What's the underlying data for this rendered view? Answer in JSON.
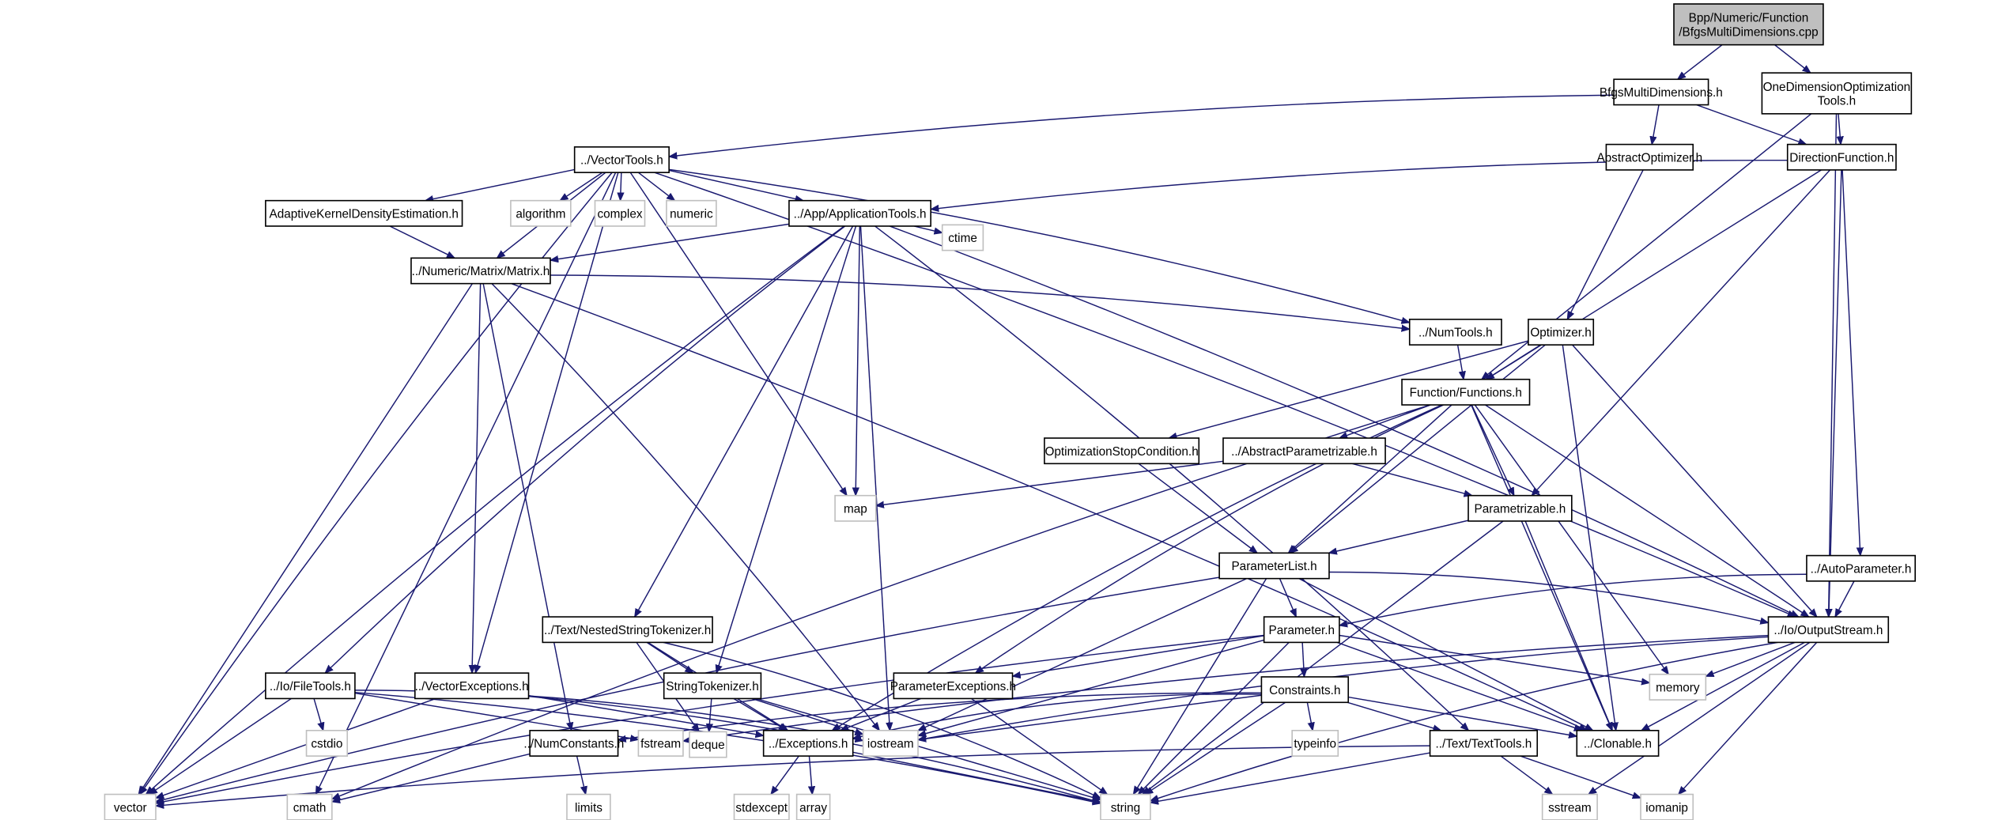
{
  "diagram": {
    "type": "include-dependency-graph",
    "colors": {
      "edge": "#191970",
      "root_fill": "#bfbfbf",
      "system_border": "#bfbfbf",
      "documented_border": "#000000"
    },
    "nodes": [
      {
        "id": "root",
        "lines": [
          "Bpp/Numeric/Function",
          "/BfgsMultiDimensions.cpp"
        ],
        "kind": "root"
      },
      {
        "id": "bfgs",
        "lines": [
          "BfgsMultiDimensions.h"
        ],
        "kind": "documented"
      },
      {
        "id": "onedim",
        "lines": [
          "OneDimensionOptimization",
          "Tools.h"
        ],
        "kind": "documented"
      },
      {
        "id": "vectortools",
        "lines": [
          "../VectorTools.h"
        ],
        "kind": "documented"
      },
      {
        "id": "absopt",
        "lines": [
          "AbstractOptimizer.h"
        ],
        "kind": "documented"
      },
      {
        "id": "dirfun",
        "lines": [
          "DirectionFunction.h"
        ],
        "kind": "documented"
      },
      {
        "id": "akde",
        "lines": [
          "AdaptiveKernelDensityEstimation.h"
        ],
        "kind": "documented"
      },
      {
        "id": "algorithm",
        "lines": [
          "algorithm"
        ],
        "kind": "system"
      },
      {
        "id": "complex",
        "lines": [
          "complex"
        ],
        "kind": "system"
      },
      {
        "id": "numeric",
        "lines": [
          "numeric"
        ],
        "kind": "system"
      },
      {
        "id": "apptools",
        "lines": [
          "../App/ApplicationTools.h"
        ],
        "kind": "documented"
      },
      {
        "id": "ctime",
        "lines": [
          "ctime"
        ],
        "kind": "system"
      },
      {
        "id": "matrix",
        "lines": [
          "../Numeric/Matrix/Matrix.h"
        ],
        "kind": "documented"
      },
      {
        "id": "numtools",
        "lines": [
          "../NumTools.h"
        ],
        "kind": "documented"
      },
      {
        "id": "optimizer",
        "lines": [
          "Optimizer.h"
        ],
        "kind": "documented"
      },
      {
        "id": "functions",
        "lines": [
          "Function/Functions.h"
        ],
        "kind": "documented"
      },
      {
        "id": "optstop",
        "lines": [
          "OptimizationStopCondition.h"
        ],
        "kind": "documented"
      },
      {
        "id": "absparam",
        "lines": [
          "../AbstractParametrizable.h"
        ],
        "kind": "documented"
      },
      {
        "id": "map",
        "lines": [
          "map"
        ],
        "kind": "system"
      },
      {
        "id": "parametrizable",
        "lines": [
          "Parametrizable.h"
        ],
        "kind": "documented"
      },
      {
        "id": "autoparam",
        "lines": [
          "../AutoParameter.h"
        ],
        "kind": "documented"
      },
      {
        "id": "paramlist",
        "lines": [
          "ParameterList.h"
        ],
        "kind": "documented"
      },
      {
        "id": "nested",
        "lines": [
          "../Text/NestedStringTokenizer.h"
        ],
        "kind": "documented"
      },
      {
        "id": "parameter",
        "lines": [
          "Parameter.h"
        ],
        "kind": "documented"
      },
      {
        "id": "outstream",
        "lines": [
          "../Io/OutputStream.h"
        ],
        "kind": "documented"
      },
      {
        "id": "filetools",
        "lines": [
          "../Io/FileTools.h"
        ],
        "kind": "documented"
      },
      {
        "id": "vecexc",
        "lines": [
          "../VectorExceptions.h"
        ],
        "kind": "documented"
      },
      {
        "id": "strtok",
        "lines": [
          "StringTokenizer.h"
        ],
        "kind": "documented"
      },
      {
        "id": "paramexc",
        "lines": [
          "ParameterExceptions.h"
        ],
        "kind": "documented"
      },
      {
        "id": "constraints",
        "lines": [
          "Constraints.h"
        ],
        "kind": "documented"
      },
      {
        "id": "memory",
        "lines": [
          "memory"
        ],
        "kind": "system"
      },
      {
        "id": "cstdio",
        "lines": [
          "cstdio"
        ],
        "kind": "system"
      },
      {
        "id": "fstream",
        "lines": [
          "fstream"
        ],
        "kind": "system"
      },
      {
        "id": "numconst",
        "lines": [
          "../NumConstants.h"
        ],
        "kind": "documented"
      },
      {
        "id": "deque",
        "lines": [
          "deque"
        ],
        "kind": "system"
      },
      {
        "id": "exceptions",
        "lines": [
          "../Exceptions.h"
        ],
        "kind": "documented"
      },
      {
        "id": "iostream",
        "lines": [
          "iostream"
        ],
        "kind": "system"
      },
      {
        "id": "typeinfo",
        "lines": [
          "typeinfo"
        ],
        "kind": "system"
      },
      {
        "id": "texttools",
        "lines": [
          "../Text/TextTools.h"
        ],
        "kind": "documented"
      },
      {
        "id": "clonable",
        "lines": [
          "../Clonable.h"
        ],
        "kind": "documented"
      },
      {
        "id": "vector",
        "lines": [
          "vector"
        ],
        "kind": "system"
      },
      {
        "id": "cmath",
        "lines": [
          "cmath"
        ],
        "kind": "system"
      },
      {
        "id": "limits",
        "lines": [
          "limits"
        ],
        "kind": "system"
      },
      {
        "id": "stdexcept",
        "lines": [
          "stdexcept"
        ],
        "kind": "system"
      },
      {
        "id": "array",
        "lines": [
          "array"
        ],
        "kind": "system"
      },
      {
        "id": "string",
        "lines": [
          "string"
        ],
        "kind": "system"
      },
      {
        "id": "sstream",
        "lines": [
          "sstream"
        ],
        "kind": "system"
      },
      {
        "id": "iomanip",
        "lines": [
          "iomanip"
        ],
        "kind": "system"
      }
    ],
    "edges": [
      [
        "root",
        "bfgs"
      ],
      [
        "root",
        "onedim"
      ],
      [
        "bfgs",
        "vectortools"
      ],
      [
        "bfgs",
        "absopt"
      ],
      [
        "bfgs",
        "dirfun"
      ],
      [
        "onedim",
        "dirfun"
      ],
      [
        "onedim",
        "functions"
      ],
      [
        "onedim",
        "outstream"
      ],
      [
        "vectortools",
        "vector"
      ],
      [
        "vectortools",
        "cmath"
      ],
      [
        "vectortools",
        "vecexc"
      ],
      [
        "vectortools",
        "akde"
      ],
      [
        "vectortools",
        "matrix"
      ],
      [
        "vectortools",
        "algorithm"
      ],
      [
        "vectortools",
        "complex"
      ],
      [
        "vectortools",
        "numeric"
      ],
      [
        "vectortools",
        "apptools"
      ],
      [
        "vectortools",
        "map"
      ],
      [
        "vectortools",
        "numtools"
      ],
      [
        "vectortools",
        "outstream"
      ],
      [
        "absopt",
        "optimizer"
      ],
      [
        "dirfun",
        "apptools"
      ],
      [
        "dirfun",
        "functions"
      ],
      [
        "dirfun",
        "parametrizable"
      ],
      [
        "dirfun",
        "autoparam"
      ],
      [
        "dirfun",
        "outstream"
      ],
      [
        "akde",
        "matrix"
      ],
      [
        "apptools",
        "vector"
      ],
      [
        "apptools",
        "filetools"
      ],
      [
        "apptools",
        "matrix"
      ],
      [
        "apptools",
        "nested"
      ],
      [
        "apptools",
        "strtok"
      ],
      [
        "apptools",
        "map"
      ],
      [
        "apptools",
        "iostream"
      ],
      [
        "apptools",
        "ctime"
      ],
      [
        "apptools",
        "texttools"
      ],
      [
        "apptools",
        "outstream"
      ],
      [
        "matrix",
        "vector"
      ],
      [
        "matrix",
        "numconst"
      ],
      [
        "matrix",
        "vecexc"
      ],
      [
        "matrix",
        "iostream"
      ],
      [
        "matrix",
        "clonable"
      ],
      [
        "matrix",
        "numtools"
      ],
      [
        "numtools",
        "functions"
      ],
      [
        "optimizer",
        "optstop"
      ],
      [
        "optimizer",
        "functions"
      ],
      [
        "optimizer",
        "paramlist"
      ],
      [
        "optimizer",
        "clonable"
      ],
      [
        "optimizer",
        "outstream"
      ],
      [
        "functions",
        "cmath"
      ],
      [
        "functions",
        "exceptions"
      ],
      [
        "functions",
        "absparam"
      ],
      [
        "functions",
        "paramexc"
      ],
      [
        "functions",
        "paramlist"
      ],
      [
        "functions",
        "parametrizable"
      ],
      [
        "functions",
        "memory"
      ],
      [
        "functions",
        "clonable"
      ],
      [
        "functions",
        "outstream"
      ],
      [
        "optstop",
        "paramlist"
      ],
      [
        "absparam",
        "map"
      ],
      [
        "absparam",
        "parametrizable"
      ],
      [
        "parametrizable",
        "paramlist"
      ],
      [
        "parametrizable",
        "string"
      ],
      [
        "parametrizable",
        "clonable"
      ],
      [
        "autoparam",
        "parameter"
      ],
      [
        "autoparam",
        "outstream"
      ],
      [
        "paramlist",
        "vector"
      ],
      [
        "paramlist",
        "parameter"
      ],
      [
        "paramlist",
        "iostream"
      ],
      [
        "paramlist",
        "string"
      ],
      [
        "paramlist",
        "clonable"
      ],
      [
        "paramlist",
        "outstream"
      ],
      [
        "nested",
        "strtok"
      ],
      [
        "nested",
        "deque"
      ],
      [
        "nested",
        "exceptions"
      ],
      [
        "nested",
        "string"
      ],
      [
        "parameter",
        "vector"
      ],
      [
        "parameter",
        "paramexc"
      ],
      [
        "parameter",
        "constraints"
      ],
      [
        "parameter",
        "iostream"
      ],
      [
        "parameter",
        "string"
      ],
      [
        "parameter",
        "clonable"
      ],
      [
        "parameter",
        "memory"
      ],
      [
        "outstream",
        "fstream"
      ],
      [
        "outstream",
        "iostream"
      ],
      [
        "outstream",
        "memory"
      ],
      [
        "outstream",
        "clonable"
      ],
      [
        "outstream",
        "string"
      ],
      [
        "outstream",
        "sstream"
      ],
      [
        "outstream",
        "iomanip"
      ],
      [
        "filetools",
        "cstdio"
      ],
      [
        "filetools",
        "fstream"
      ],
      [
        "filetools",
        "vector"
      ],
      [
        "filetools",
        "iostream"
      ],
      [
        "filetools",
        "string"
      ],
      [
        "vecexc",
        "vector"
      ],
      [
        "vecexc",
        "exceptions"
      ],
      [
        "vecexc",
        "string"
      ],
      [
        "strtok",
        "deque"
      ],
      [
        "strtok",
        "exceptions"
      ],
      [
        "strtok",
        "iostream"
      ],
      [
        "strtok",
        "string"
      ],
      [
        "paramexc",
        "exceptions"
      ],
      [
        "paramexc",
        "string"
      ],
      [
        "constraints",
        "numconst"
      ],
      [
        "constraints",
        "exceptions"
      ],
      [
        "constraints",
        "iostream"
      ],
      [
        "constraints",
        "typeinfo"
      ],
      [
        "constraints",
        "string"
      ],
      [
        "constraints",
        "texttools"
      ],
      [
        "constraints",
        "clonable"
      ],
      [
        "numconst",
        "limits"
      ],
      [
        "numconst",
        "cmath"
      ],
      [
        "exceptions",
        "stdexcept"
      ],
      [
        "exceptions",
        "array"
      ],
      [
        "exceptions",
        "string"
      ],
      [
        "texttools",
        "vector"
      ],
      [
        "texttools",
        "string"
      ],
      [
        "texttools",
        "sstream"
      ],
      [
        "texttools",
        "iomanip"
      ]
    ]
  }
}
